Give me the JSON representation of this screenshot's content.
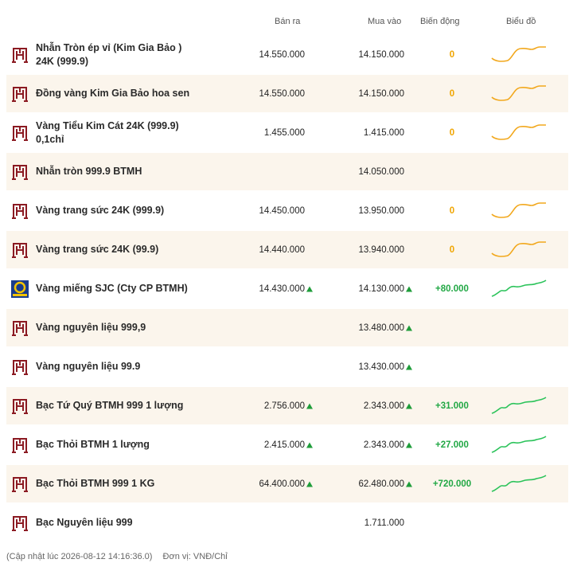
{
  "table": {
    "columns": [
      "Bán ra",
      "Mua vào",
      "Biến động",
      "Biểu đồ"
    ],
    "rows": [
      {
        "logo": "btmh",
        "name": "Nhẫn Tròn ép vỉ (Kim Gia Bảo ) 24K (999.9)",
        "sell": "14.550.000",
        "buy": "14.150.000",
        "change": "0"
      },
      {
        "logo": "btmh",
        "name": "Đồng vàng Kim Gia Bảo hoa sen",
        "sell": "14.550.000",
        "buy": "14.150.000",
        "change": "0"
      },
      {
        "logo": "btmh",
        "name": "Vàng Tiểu Kim Cát 24K (999.9) 0,1chỉ",
        "sell": "1.455.000",
        "buy": "1.415.000",
        "change": "0"
      },
      {
        "logo": "btmh",
        "name": "Nhẫn tròn 999.9 BTMH",
        "buy": "14.050.000"
      },
      {
        "logo": "btmh",
        "name": "Vàng trang sức 24K (999.9)",
        "sell": "14.450.000",
        "buy": "13.950.000",
        "change": "0"
      },
      {
        "logo": "btmh",
        "name": "Vàng trang sức 24K (99.9)",
        "sell": "14.440.000",
        "buy": "13.940.000",
        "change": "0"
      },
      {
        "logo": "sjc",
        "name": "Vàng miếng SJC (Cty CP BTMH)",
        "sell": "14.430.000",
        "sell_trend": "up",
        "buy": "14.130.000",
        "buy_trend": "up",
        "change": "+80.000"
      },
      {
        "logo": "btmh",
        "name": "Vàng nguyên liệu 999,9",
        "buy": "13.480.000",
        "buy_trend": "up"
      },
      {
        "logo": "btmh",
        "name": "Vàng nguyên liệu 99.9",
        "buy": "13.430.000",
        "buy_trend": "up"
      },
      {
        "logo": "btmh",
        "name": "Bạc Tứ Quý BTMH 999 1 lượng",
        "sell": "2.756.000",
        "sell_trend": "up",
        "buy": "2.343.000",
        "buy_trend": "up",
        "change": "+31.000"
      },
      {
        "logo": "btmh",
        "name": "Bạc Thỏi BTMH 1 lượng",
        "sell": "2.415.000",
        "sell_trend": "up",
        "buy": "2.343.000",
        "buy_trend": "up",
        "change": "+27.000"
      },
      {
        "logo": "btmh",
        "name": "Bạc Thỏi BTMH 999 1 KG",
        "sell": "64.400.000",
        "sell_trend": "up",
        "buy": "62.480.000",
        "buy_trend": "up",
        "change": "+720.000"
      },
      {
        "logo": "btmh",
        "name": "Bạc Nguyên liệu 999",
        "buy": "1.711.000"
      }
    ]
  },
  "footer": {
    "updated": "(Cập nhật lúc 2026-08-12 14:16:36.0)",
    "unit": "Đơn vị: VNĐ/Chỉ"
  }
}
